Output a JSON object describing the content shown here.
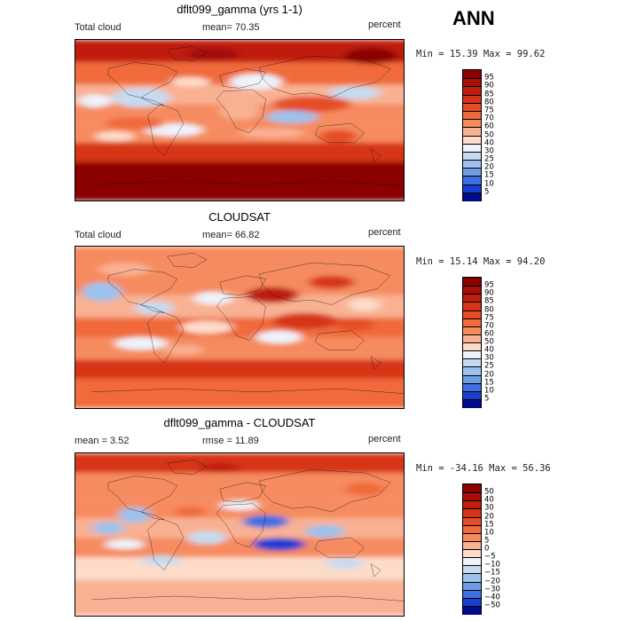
{
  "season": "ANN",
  "panels": [
    {
      "title": "dflt099_gamma (yrs 1-1)",
      "left_label": "Total cloud",
      "mid_label": "mean=  70.35",
      "right_label": "percent",
      "minmax": "Min =  15.39 Max =  99.62",
      "colorbar": {
        "ticks": [
          "95",
          "90",
          "85",
          "80",
          "75",
          "70",
          "60",
          "50",
          "40",
          "30",
          "25",
          "20",
          "15",
          "10",
          "5"
        ],
        "colors": [
          "#8b0000",
          "#a50f07",
          "#bf1e0d",
          "#d63418",
          "#e54d26",
          "#f06b3b",
          "#f68b5e",
          "#f9b193",
          "#fcdcc9",
          "#eef3fb",
          "#c6dbf1",
          "#9dc1ea",
          "#6f9de6",
          "#3f6fe0",
          "#1a3fd0",
          "#000d8a"
        ]
      }
    },
    {
      "title": "CLOUDSAT",
      "left_label": "Total cloud",
      "mid_label": "mean=  66.82",
      "right_label": "percent",
      "minmax": "Min =  15.14 Max =  94.20",
      "colorbar": {
        "ticks": [
          "95",
          "90",
          "85",
          "80",
          "75",
          "70",
          "60",
          "50",
          "40",
          "30",
          "25",
          "20",
          "15",
          "10",
          "5"
        ],
        "colors": [
          "#8b0000",
          "#a50f07",
          "#bf1e0d",
          "#d63418",
          "#e54d26",
          "#f06b3b",
          "#f68b5e",
          "#f9b193",
          "#fcdcc9",
          "#eef3fb",
          "#c6dbf1",
          "#9dc1ea",
          "#6f9de6",
          "#3f6fe0",
          "#1a3fd0",
          "#000d8a"
        ]
      }
    },
    {
      "title": "dflt099_gamma - CLOUDSAT",
      "left_label": "mean =   3.52",
      "mid_label": "rmse =  11.89",
      "right_label": "percent",
      "minmax": "Min = -34.16 Max =  56.36",
      "colorbar": {
        "ticks": [
          "50",
          "40",
          "30",
          "20",
          "15",
          "10",
          "5",
          "0",
          "−5",
          "−10",
          "−15",
          "−20",
          "−30",
          "−40",
          "−50"
        ],
        "colors": [
          "#8b0000",
          "#a50f07",
          "#bf1e0d",
          "#d63418",
          "#e54d26",
          "#f06b3b",
          "#f68b5e",
          "#f9b193",
          "#fcdcc9",
          "#eef3fb",
          "#c6dbf1",
          "#9dc1ea",
          "#6f9de6",
          "#3f6fe0",
          "#1a3fd0",
          "#000d8a"
        ]
      }
    }
  ]
}
